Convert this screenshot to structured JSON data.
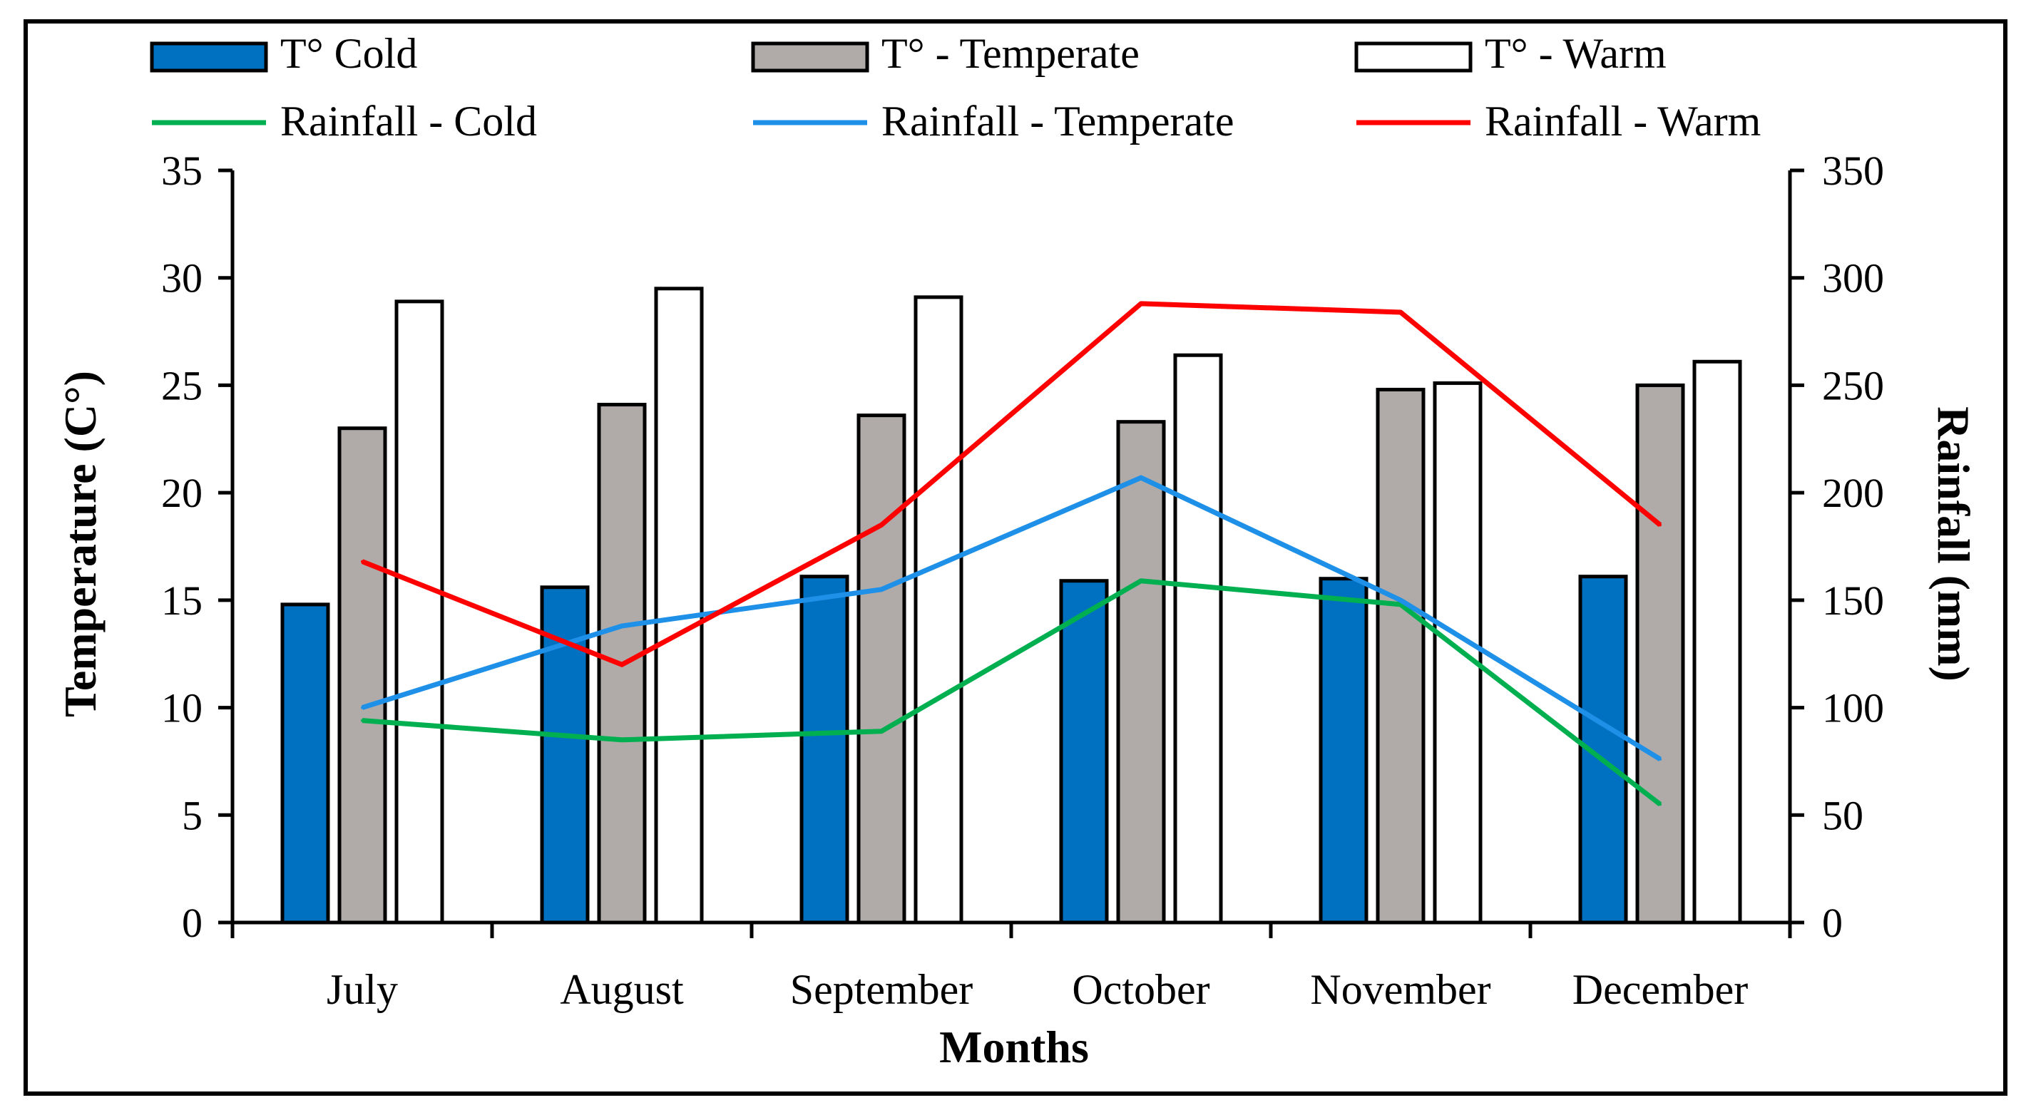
{
  "chart_data": {
    "type": "bar",
    "categories": [
      "July",
      "August",
      "September",
      "October",
      "November",
      "December"
    ],
    "xlabel": "Months",
    "ylabel": "Temperature (C°)",
    "y2label": "Rainfall (mm)",
    "ylim": [
      0,
      35
    ],
    "y2lim": [
      0,
      350
    ],
    "yticks": [
      0,
      5,
      10,
      15,
      20,
      25,
      30,
      35
    ],
    "y2ticks": [
      0,
      50,
      100,
      150,
      200,
      250,
      300,
      350
    ],
    "grid": false,
    "legend_position": "top",
    "bar_series": [
      {
        "name": "T° Cold",
        "values": [
          14.8,
          15.6,
          16.1,
          15.9,
          16.0,
          16.1
        ],
        "color": "#0070C0"
      },
      {
        "name": "T° - Temperate",
        "values": [
          23.0,
          24.1,
          23.6,
          23.3,
          24.8,
          25.0
        ],
        "color": "#B0ABA8"
      },
      {
        "name": "T° - Warm",
        "values": [
          28.9,
          29.5,
          29.1,
          26.4,
          25.1,
          26.1
        ],
        "color": "#FFFFFF"
      }
    ],
    "line_series": [
      {
        "name": "Rainfall - Cold",
        "values": [
          94,
          85,
          89,
          159,
          148,
          55
        ],
        "color": "#00B050"
      },
      {
        "name": "Rainfall - Temperate",
        "values": [
          100,
          138,
          155,
          207,
          150,
          76
        ],
        "color": "#1E90E8"
      },
      {
        "name": "Rainfall - Warm",
        "values": [
          168,
          120,
          185,
          288,
          284,
          185
        ],
        "color": "#FF0000"
      }
    ]
  }
}
